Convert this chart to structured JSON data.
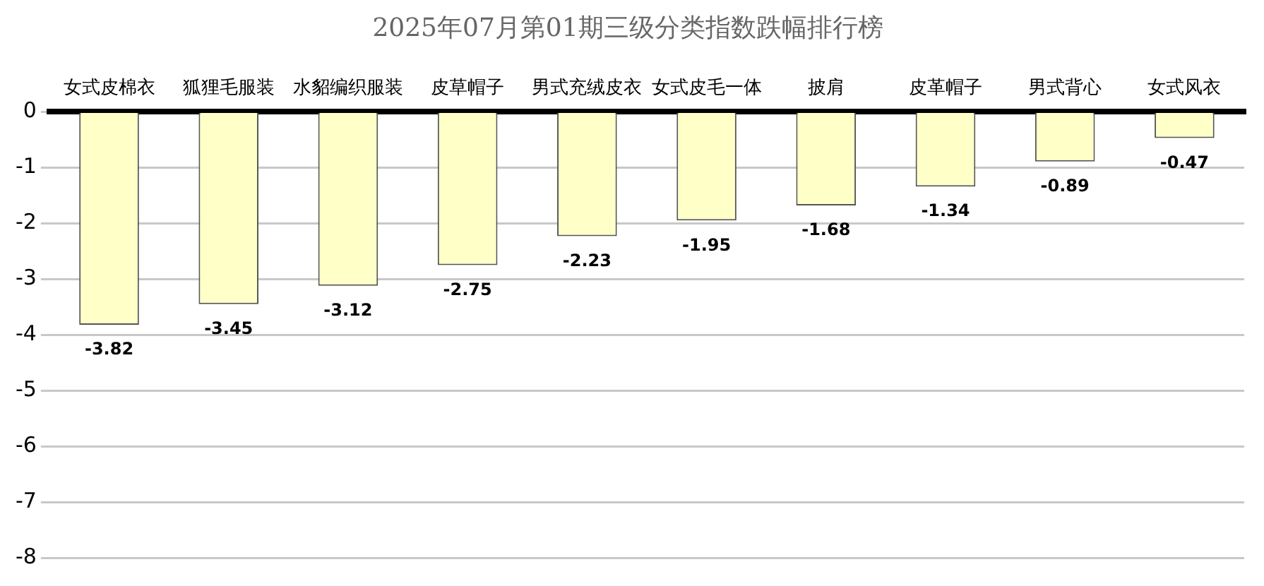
{
  "chart_data": {
    "type": "bar",
    "title": "2025年07月第01期三级分类指数跌幅排行榜",
    "categories": [
      "女式皮棉衣",
      "狐狸毛服装",
      "水貂编织服装",
      "皮草帽子",
      "男式充绒皮衣",
      "女式皮毛一体",
      "披肩",
      "皮革帽子",
      "男式背心",
      "女式风衣"
    ],
    "values": [
      -3.82,
      -3.45,
      -3.12,
      -2.75,
      -2.23,
      -1.95,
      -1.68,
      -1.34,
      -0.89,
      -0.47
    ],
    "color": "#ffffc8",
    "ylim": [
      -8,
      0
    ],
    "yticks": [
      0,
      -1,
      -2,
      -3,
      -4,
      -5,
      -6,
      -7,
      -8
    ],
    "grid": "y",
    "legend": false,
    "data_labels": true
  }
}
